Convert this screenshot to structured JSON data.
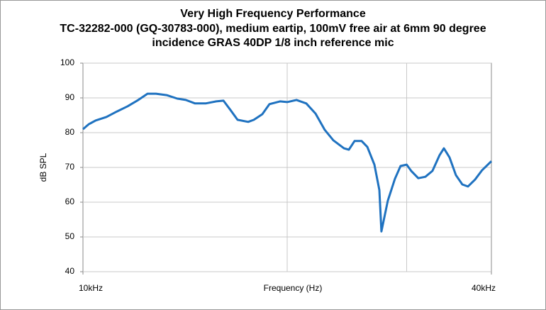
{
  "chart_data": {
    "type": "line",
    "title": "Very High Frequency Performance",
    "subtitle": "TC-32282-000 (GQ-30783-000), medium eartip, 100mV free air at 6mm 90 degree incidence GRAS 40DP 1/8 inch reference mic",
    "xlabel": "Frequency (Hz)",
    "ylabel": "dB SPL",
    "x": [
      10000,
      10194,
      10443,
      10826,
      11225,
      11636,
      12064,
      12450,
      12812,
      13283,
      13772,
      14177,
      14630,
      15166,
      15723,
      16107,
      16500,
      16900,
      17520,
      17860,
      18380,
      18830,
      19520,
      20000,
      20640,
      21340,
      22020,
      22720,
      23390,
      24250,
      24660,
      25140,
      25750,
      26250,
      26890,
      27350,
      27540,
      28140,
      28830,
      29390,
      30000,
      30470,
      31210,
      31970,
      32750,
      33550,
      34040,
      34700,
      35460,
      36240,
      36940,
      37840,
      38760,
      40000
    ],
    "values": [
      81.0,
      82.4,
      83.5,
      84.5,
      86.1,
      87.6,
      89.4,
      91.2,
      91.2,
      90.8,
      89.8,
      89.4,
      88.4,
      88.4,
      89.0,
      89.2,
      86.5,
      83.7,
      83.1,
      83.7,
      85.3,
      88.2,
      89.0,
      88.8,
      89.4,
      88.4,
      85.5,
      80.8,
      77.8,
      75.5,
      75.1,
      77.6,
      77.6,
      75.9,
      70.8,
      63.5,
      51.6,
      60.4,
      66.7,
      70.4,
      70.8,
      69.0,
      66.9,
      67.3,
      69.0,
      73.5,
      75.5,
      72.9,
      67.8,
      65.1,
      64.5,
      66.5,
      69.2,
      71.8
    ],
    "color": "#1f72c0",
    "xscale": "log",
    "xlim": [
      10000,
      40000
    ],
    "xticks": [
      {
        "value": 10000,
        "label": "10kHz"
      },
      {
        "value": 40000,
        "label": "40kHz"
      }
    ],
    "xgrid": [
      20000,
      30000
    ],
    "ylim": [
      40,
      100
    ],
    "yticks": [
      40,
      50,
      60,
      70,
      80,
      90,
      100
    ],
    "grid": true
  }
}
